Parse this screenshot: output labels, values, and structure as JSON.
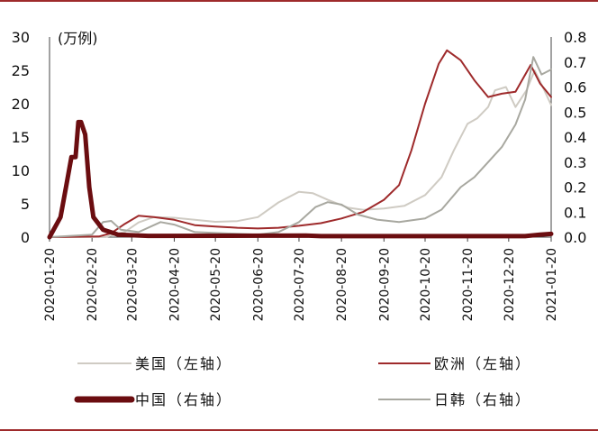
{
  "chart_data": {
    "type": "line",
    "unit_label": "(万例)",
    "x_ticks": [
      "2020-01-20",
      "2020-02-20",
      "2020-03-20",
      "2020-04-20",
      "2020-05-20",
      "2020-06-20",
      "2020-07-20",
      "2020-08-20",
      "2020-09-20",
      "2020-10-20",
      "2020-11-20",
      "2020-12-20",
      "2021-01-20"
    ],
    "y_left": {
      "min": 0,
      "max": 30,
      "ticks": [
        0,
        5,
        10,
        15,
        20,
        25,
        30
      ]
    },
    "y_right": {
      "min": 0,
      "max": 0.8,
      "ticks": [
        "0.0",
        "0.1",
        "0.2",
        "0.3",
        "0.4",
        "0.5",
        "0.6",
        "0.7",
        "0.8"
      ]
    },
    "grid": false,
    "legend_position": "bottom",
    "series": [
      {
        "name": "美国（左轴）",
        "axis": "left",
        "color": "#cfcbc3",
        "width": 2,
        "points": [
          [
            "2020-01-20",
            0
          ],
          [
            "2020-03-01",
            0.02
          ],
          [
            "2020-03-15",
            0.8
          ],
          [
            "2020-03-25",
            2.2
          ],
          [
            "2020-04-05",
            3.0
          ],
          [
            "2020-04-20",
            2.9
          ],
          [
            "2020-05-05",
            2.6
          ],
          [
            "2020-05-20",
            2.3
          ],
          [
            "2020-06-05",
            2.4
          ],
          [
            "2020-06-20",
            3.0
          ],
          [
            "2020-07-05",
            5.2
          ],
          [
            "2020-07-20",
            6.8
          ],
          [
            "2020-07-30",
            6.6
          ],
          [
            "2020-08-10",
            5.6
          ],
          [
            "2020-08-25",
            4.4
          ],
          [
            "2020-09-05",
            4.1
          ],
          [
            "2020-09-20",
            4.3
          ],
          [
            "2020-10-05",
            4.7
          ],
          [
            "2020-10-20",
            6.3
          ],
          [
            "2020-11-01",
            9.0
          ],
          [
            "2020-11-10",
            13.0
          ],
          [
            "2020-11-20",
            17.0
          ],
          [
            "2020-11-27",
            17.8
          ],
          [
            "2020-12-05",
            19.5
          ],
          [
            "2020-12-10",
            22.0
          ],
          [
            "2020-12-18",
            22.5
          ],
          [
            "2020-12-25",
            19.5
          ],
          [
            "2021-01-02",
            22.0
          ],
          [
            "2021-01-08",
            25.0
          ],
          [
            "2021-01-15",
            22.0
          ],
          [
            "2021-01-20",
            19.8
          ]
        ]
      },
      {
        "name": "欧洲（左轴）",
        "axis": "left",
        "color": "#9e2a2b",
        "width": 2,
        "points": [
          [
            "2020-01-20",
            0
          ],
          [
            "2020-02-25",
            0.1
          ],
          [
            "2020-03-05",
            0.6
          ],
          [
            "2020-03-15",
            2.0
          ],
          [
            "2020-03-25",
            3.2
          ],
          [
            "2020-04-05",
            3.0
          ],
          [
            "2020-04-20",
            2.6
          ],
          [
            "2020-05-05",
            1.8
          ],
          [
            "2020-05-20",
            1.6
          ],
          [
            "2020-06-05",
            1.4
          ],
          [
            "2020-06-20",
            1.3
          ],
          [
            "2020-07-05",
            1.4
          ],
          [
            "2020-07-20",
            1.7
          ],
          [
            "2020-08-05",
            2.1
          ],
          [
            "2020-08-20",
            2.8
          ],
          [
            "2020-09-05",
            3.8
          ],
          [
            "2020-09-20",
            5.6
          ],
          [
            "2020-10-01",
            7.8
          ],
          [
            "2020-10-10",
            13.0
          ],
          [
            "2020-10-20",
            20.0
          ],
          [
            "2020-10-30",
            26.0
          ],
          [
            "2020-11-05",
            28.0
          ],
          [
            "2020-11-15",
            26.5
          ],
          [
            "2020-11-25",
            23.5
          ],
          [
            "2020-12-05",
            21.0
          ],
          [
            "2020-12-15",
            21.5
          ],
          [
            "2020-12-25",
            21.8
          ],
          [
            "2021-01-05",
            25.8
          ],
          [
            "2021-01-12",
            23.0
          ],
          [
            "2021-01-20",
            21.0
          ]
        ]
      },
      {
        "name": "中国（右轴）",
        "axis": "right",
        "color": "#6b0d10",
        "width": 5,
        "points": [
          [
            "2020-01-20",
            0.0
          ],
          [
            "2020-01-24",
            0.04
          ],
          [
            "2020-01-28",
            0.08
          ],
          [
            "2020-02-01",
            0.2
          ],
          [
            "2020-02-05",
            0.32
          ],
          [
            "2020-02-08",
            0.32
          ],
          [
            "2020-02-10",
            0.46
          ],
          [
            "2020-02-12",
            0.46
          ],
          [
            "2020-02-15",
            0.41
          ],
          [
            "2020-02-18",
            0.2
          ],
          [
            "2020-02-21",
            0.08
          ],
          [
            "2020-02-28",
            0.03
          ],
          [
            "2020-03-10",
            0.01
          ],
          [
            "2020-04-01",
            0.005
          ],
          [
            "2020-07-25",
            0.006
          ],
          [
            "2020-08-05",
            0.004
          ],
          [
            "2021-01-01",
            0.004
          ],
          [
            "2021-01-12",
            0.01
          ],
          [
            "2021-01-20",
            0.013
          ]
        ]
      },
      {
        "name": "日韩（右轴）",
        "axis": "right",
        "color": "#a8a8a0",
        "width": 2,
        "points": [
          [
            "2020-01-20",
            0.0
          ],
          [
            "2020-02-20",
            0.01
          ],
          [
            "2020-02-28",
            0.06
          ],
          [
            "2020-03-05",
            0.065
          ],
          [
            "2020-03-12",
            0.03
          ],
          [
            "2020-03-25",
            0.02
          ],
          [
            "2020-04-10",
            0.06
          ],
          [
            "2020-04-20",
            0.05
          ],
          [
            "2020-05-05",
            0.02
          ],
          [
            "2020-06-20",
            0.01
          ],
          [
            "2020-07-05",
            0.02
          ],
          [
            "2020-07-20",
            0.06
          ],
          [
            "2020-08-01",
            0.12
          ],
          [
            "2020-08-10",
            0.14
          ],
          [
            "2020-08-20",
            0.13
          ],
          [
            "2020-09-01",
            0.09
          ],
          [
            "2020-09-15",
            0.07
          ],
          [
            "2020-10-01",
            0.06
          ],
          [
            "2020-10-20",
            0.075
          ],
          [
            "2020-11-01",
            0.11
          ],
          [
            "2020-11-15",
            0.2
          ],
          [
            "2020-11-25",
            0.24
          ],
          [
            "2020-12-05",
            0.3
          ],
          [
            "2020-12-15",
            0.36
          ],
          [
            "2020-12-25",
            0.45
          ],
          [
            "2021-01-01",
            0.55
          ],
          [
            "2021-01-07",
            0.72
          ],
          [
            "2021-01-13",
            0.65
          ],
          [
            "2021-01-20",
            0.67
          ]
        ]
      }
    ]
  }
}
